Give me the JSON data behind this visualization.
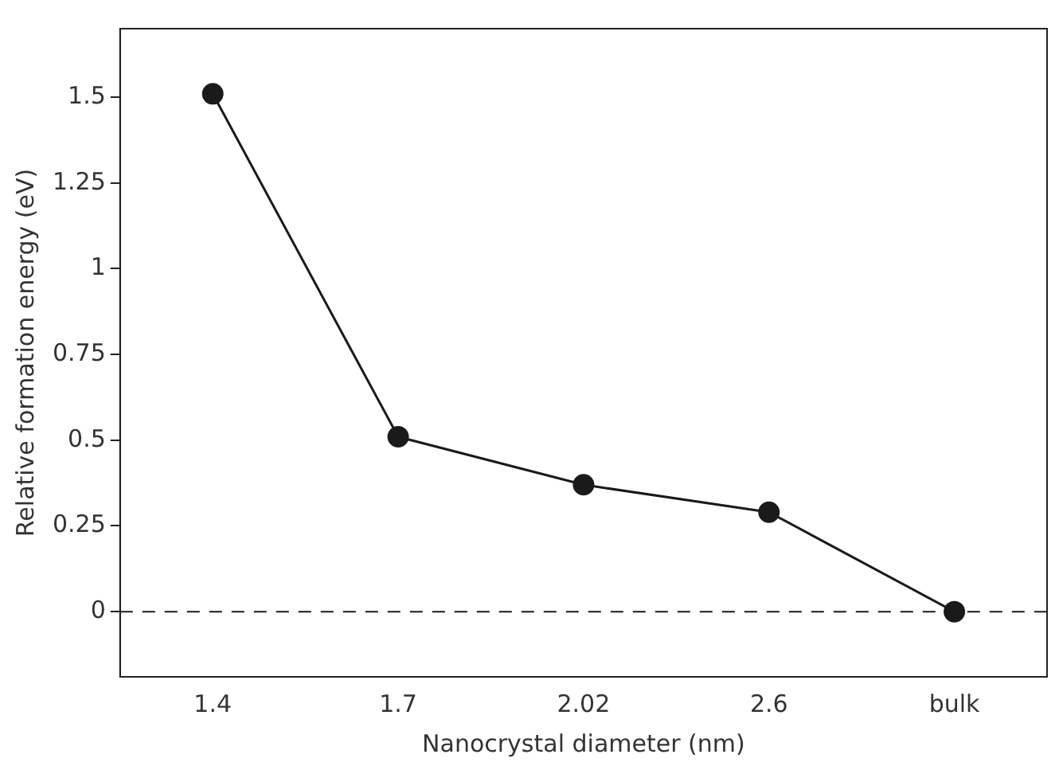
{
  "chart_data": {
    "type": "line",
    "xlabel": "Nanocrystal diameter (nm)",
    "ylabel": "Relative formation energy (eV)",
    "categories": [
      "1.4",
      "1.7",
      "2.02",
      "2.6",
      "bulk"
    ],
    "series": [
      {
        "color": "#1a1a1a",
        "values": [
          1.51,
          0.51,
          0.37,
          0.29,
          0
        ]
      }
    ],
    "ylim": [
      -0.19,
      1.7
    ],
    "yticks": [
      0,
      0.25,
      0.5,
      0.75,
      1,
      1.25,
      1.5
    ],
    "ref_lines": [
      {
        "axis": "y",
        "value": 0,
        "line_style": "dashed",
        "color": "#1a1a1a"
      }
    ],
    "marker": "circle",
    "line_style": "solid",
    "grid": false,
    "legend": false
  }
}
